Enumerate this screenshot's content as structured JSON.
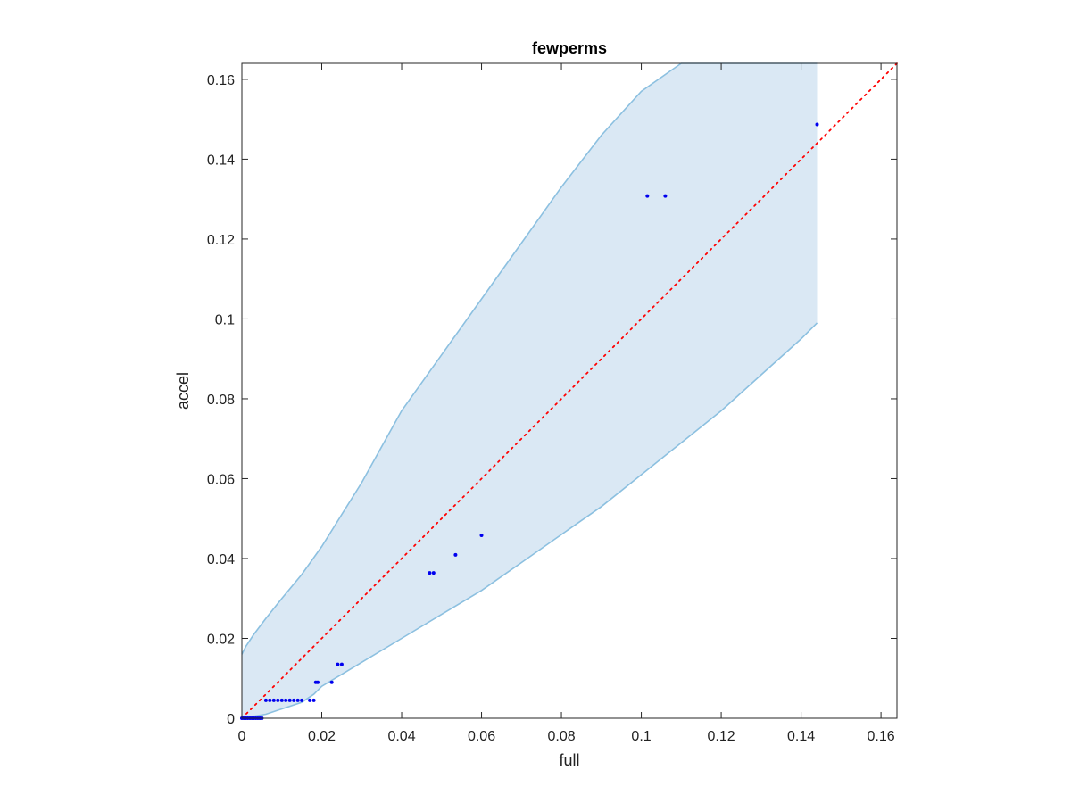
{
  "chart_data": {
    "type": "scatter",
    "title": "fewperms",
    "xlabel": "full",
    "ylabel": "accel",
    "xlim": [
      0,
      0.164
    ],
    "ylim": [
      0,
      0.164
    ],
    "xticks": [
      "0",
      "0.02",
      "0.04",
      "0.06",
      "0.08",
      "0.1",
      "0.12",
      "0.14",
      "0.16"
    ],
    "yticks": [
      "0",
      "0.02",
      "0.04",
      "0.06",
      "0.08",
      "0.1",
      "0.12",
      "0.14",
      "0.16"
    ],
    "grid": false,
    "reference_line": {
      "style": "dotted",
      "color": "#ff0000",
      "from": [
        0,
        0
      ],
      "to": [
        0.164,
        0.164
      ]
    },
    "band": {
      "fill": "#dae8f4",
      "edge": "#8cc0e0",
      "upper": [
        [
          0,
          0.016
        ],
        [
          0.001,
          0.018
        ],
        [
          0.003,
          0.021
        ],
        [
          0.006,
          0.025
        ],
        [
          0.01,
          0.03
        ],
        [
          0.015,
          0.036
        ],
        [
          0.02,
          0.043
        ],
        [
          0.025,
          0.051
        ],
        [
          0.03,
          0.059
        ],
        [
          0.035,
          0.068
        ],
        [
          0.04,
          0.077
        ],
        [
          0.05,
          0.091
        ],
        [
          0.06,
          0.105
        ],
        [
          0.07,
          0.119
        ],
        [
          0.08,
          0.133
        ],
        [
          0.09,
          0.146
        ],
        [
          0.1,
          0.157
        ],
        [
          0.11,
          0.164
        ],
        [
          0.144,
          0.164
        ]
      ],
      "lower": [
        [
          0.144,
          0.099
        ],
        [
          0.14,
          0.095
        ],
        [
          0.13,
          0.086
        ],
        [
          0.12,
          0.077
        ],
        [
          0.11,
          0.069
        ],
        [
          0.1,
          0.061
        ],
        [
          0.09,
          0.053
        ],
        [
          0.08,
          0.046
        ],
        [
          0.07,
          0.039
        ],
        [
          0.06,
          0.032
        ],
        [
          0.05,
          0.026
        ],
        [
          0.04,
          0.02
        ],
        [
          0.03,
          0.014
        ],
        [
          0.025,
          0.011
        ],
        [
          0.02,
          0.008
        ],
        [
          0.018,
          0.006
        ],
        [
          0.015,
          0.004
        ],
        [
          0.012,
          0.003
        ],
        [
          0.009,
          0.002
        ],
        [
          0.006,
          0.001
        ],
        [
          0.003,
          0.0005
        ],
        [
          0,
          0
        ]
      ]
    },
    "series": [
      {
        "color": "#0000ee",
        "points": [
          [
            0.0,
            0.0
          ],
          [
            0.0005,
            0.0
          ],
          [
            0.001,
            0.0
          ],
          [
            0.0015,
            0.0
          ],
          [
            0.002,
            0.0
          ],
          [
            0.0025,
            0.0
          ],
          [
            0.003,
            0.0
          ],
          [
            0.0035,
            0.0
          ],
          [
            0.004,
            0.0
          ],
          [
            0.0045,
            0.0
          ],
          [
            0.005,
            0.0
          ],
          [
            0.006,
            0.0045
          ],
          [
            0.007,
            0.0045
          ],
          [
            0.008,
            0.0045
          ],
          [
            0.009,
            0.0045
          ],
          [
            0.01,
            0.0045
          ],
          [
            0.011,
            0.0045
          ],
          [
            0.012,
            0.0045
          ],
          [
            0.013,
            0.0045
          ],
          [
            0.014,
            0.0045
          ],
          [
            0.015,
            0.0045
          ],
          [
            0.017,
            0.0045
          ],
          [
            0.018,
            0.0045
          ],
          [
            0.0185,
            0.009
          ],
          [
            0.019,
            0.009
          ],
          [
            0.0225,
            0.009
          ],
          [
            0.024,
            0.0135
          ],
          [
            0.025,
            0.0135
          ],
          [
            0.047,
            0.0364
          ],
          [
            0.048,
            0.0364
          ],
          [
            0.0535,
            0.0409
          ],
          [
            0.06,
            0.0458
          ],
          [
            0.1015,
            0.1308
          ],
          [
            0.106,
            0.1308
          ],
          [
            0.144,
            0.1487
          ]
        ]
      }
    ]
  }
}
